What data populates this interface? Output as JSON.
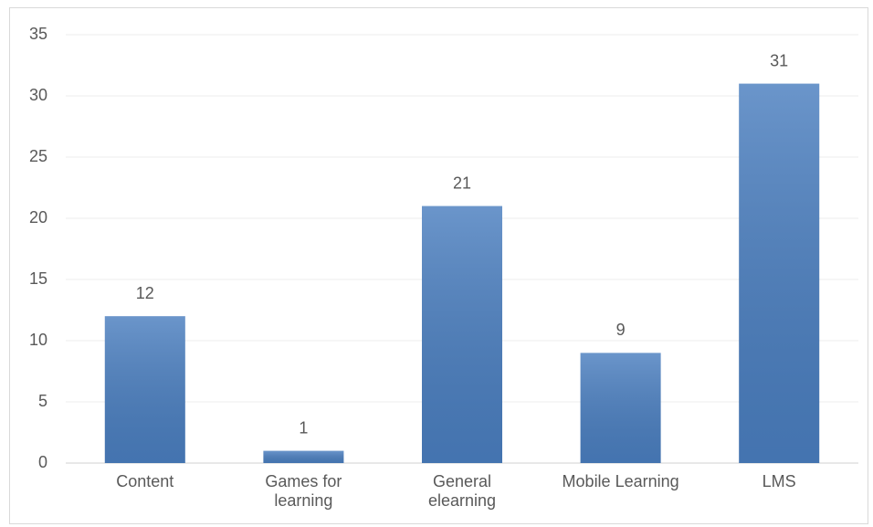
{
  "chart_data": {
    "type": "bar",
    "categories": [
      "Content",
      "Games for\nlearning",
      "General\nelearning",
      "Mobile Learning",
      "LMS"
    ],
    "values": [
      12,
      1,
      21,
      9,
      31
    ],
    "color": "#4a7ebf",
    "ylim": [
      0,
      35
    ],
    "yticks": [
      0,
      5,
      10,
      15,
      20,
      25,
      30,
      35
    ],
    "grid": true
  }
}
